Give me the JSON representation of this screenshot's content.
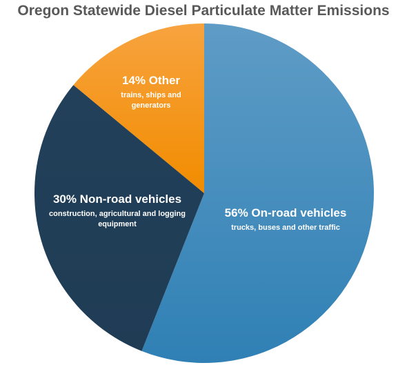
{
  "chart_data": {
    "type": "pie",
    "title": "Oregon Statewide Diesel Particulate Matter Emissions",
    "slices": [
      {
        "key": "on-road",
        "label": "56% On-road vehicles",
        "sublabel": [
          "trucks, buses and other traffic"
        ],
        "value": 56,
        "color_light": "#5f9cc6",
        "color_dark": "#2f80b5"
      },
      {
        "key": "non-road",
        "label": "30% Non-road vehicles",
        "sublabel": [
          "construction, agricultural and logging",
          "equipment"
        ],
        "value": 30,
        "color_light": "#22405a",
        "color_dark": "#203c55"
      },
      {
        "key": "other",
        "label": "14% Other",
        "sublabel": [
          "trains, ships and",
          "generators"
        ],
        "value": 14,
        "color_light": "#f7a33f",
        "color_dark": "#f28c00"
      }
    ],
    "start_angle_deg": 0,
    "direction": "clockwise",
    "legend": "none",
    "label_color": "#ffffff"
  }
}
